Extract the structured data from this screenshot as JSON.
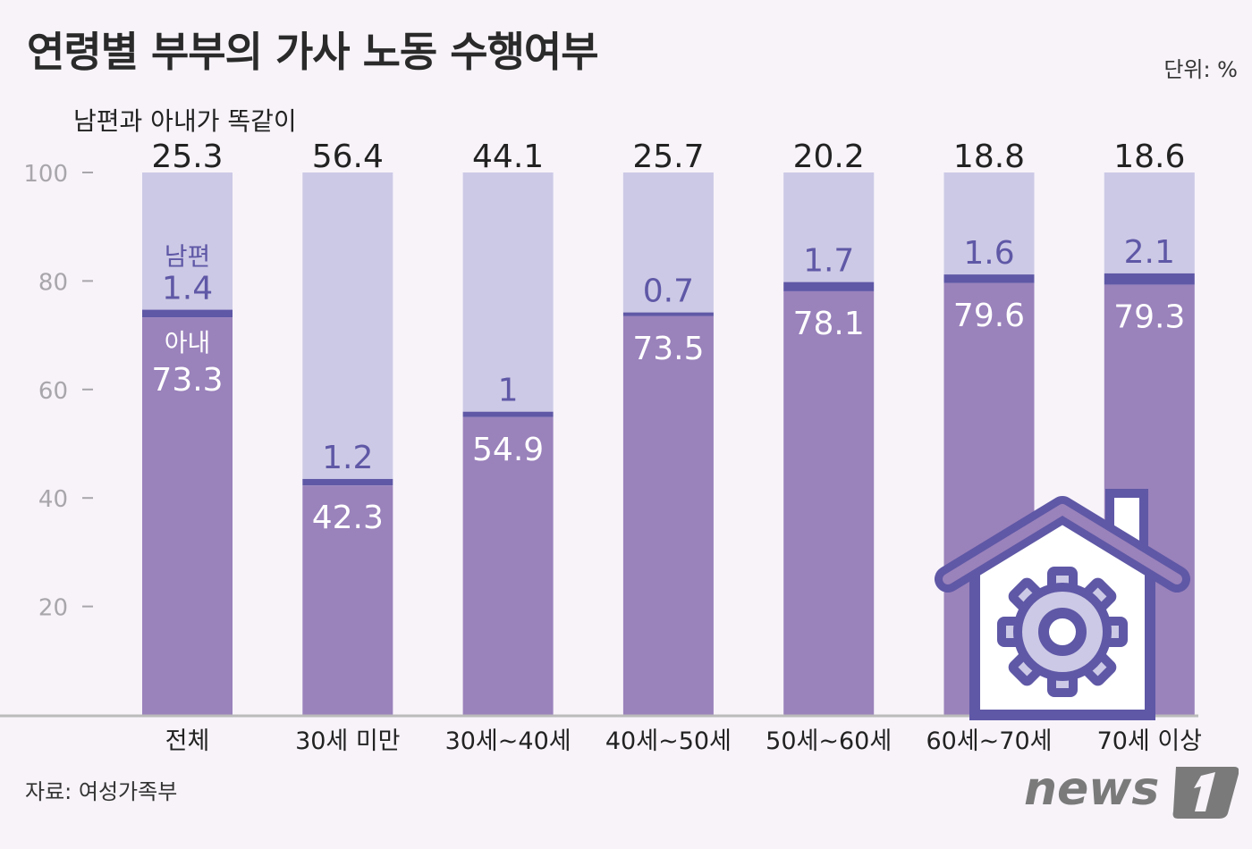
{
  "title": "연령별 부부의 가사 노동 수행여부",
  "unit": "단위: %",
  "source": "자료: 여성가족부",
  "logo": "news1",
  "colors": {
    "background": "#f7f3f9",
    "wife": "#9a82bb",
    "husband": "#5f58a6",
    "equal": "#ccc9e6"
  },
  "icon": "house-gear-icon",
  "chart_data": {
    "type": "bar",
    "stacked": true,
    "categories": [
      "전체",
      "30세 미만",
      "30세~40세",
      "40세~50세",
      "50세~60세",
      "60세~70세",
      "70세 이상"
    ],
    "series": [
      {
        "name": "아내",
        "values": [
          73.3,
          42.3,
          54.9,
          73.5,
          78.1,
          79.6,
          79.3
        ]
      },
      {
        "name": "남편",
        "values": [
          1.4,
          1.2,
          1.0,
          0.7,
          1.7,
          1.6,
          2.1
        ]
      },
      {
        "name": "남편과 아내가 똑같이",
        "values": [
          25.3,
          56.4,
          44.1,
          25.7,
          20.2,
          18.8,
          18.6
        ]
      }
    ],
    "yticks": [
      20,
      40,
      60,
      80,
      100
    ],
    "ylim": [
      0,
      100
    ],
    "grid": false
  }
}
